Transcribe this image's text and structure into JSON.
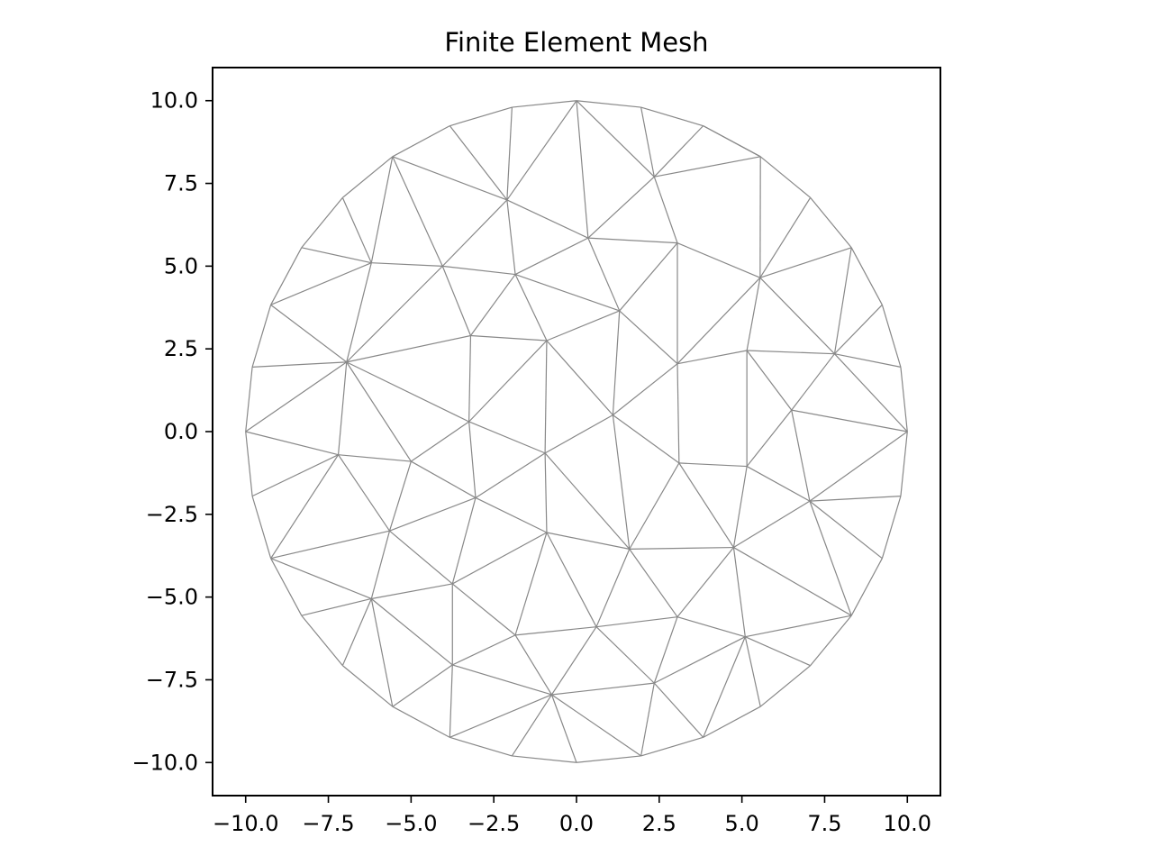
{
  "chart_data": {
    "type": "mesh",
    "title": "Finite Element Mesh",
    "xlabel": "",
    "ylabel": "",
    "xlim": [
      -11.0,
      11.0
    ],
    "ylim": [
      -11.0,
      11.0
    ],
    "grid": false,
    "edge_color": "#888888",
    "x_ticks": [
      -10.0,
      -7.5,
      -5.0,
      -2.5,
      0.0,
      2.5,
      5.0,
      7.5,
      10.0
    ],
    "x_tick_labels": [
      "−10.0",
      "−7.5",
      "−5.0",
      "−2.5",
      "0.0",
      "2.5",
      "5.0",
      "7.5",
      "10.0"
    ],
    "y_ticks": [
      10.0,
      7.5,
      5.0,
      2.5,
      0.0,
      -2.5,
      -5.0,
      -7.5,
      -10.0
    ],
    "y_tick_labels": [
      "10.0",
      "7.5",
      "5.0",
      "2.5",
      "0.0",
      "−2.5",
      "−5.0",
      "−7.5",
      "−10.0"
    ],
    "nodes": [
      [
        10.0,
        0.0
      ],
      [
        9.8,
        1.95
      ],
      [
        9.24,
        3.83
      ],
      [
        8.31,
        5.56
      ],
      [
        7.07,
        7.07
      ],
      [
        5.56,
        8.31
      ],
      [
        3.83,
        9.24
      ],
      [
        1.95,
        9.8
      ],
      [
        0.0,
        10.0
      ],
      [
        -1.95,
        9.8
      ],
      [
        -3.83,
        9.24
      ],
      [
        -5.56,
        8.31
      ],
      [
        -7.07,
        7.07
      ],
      [
        -8.31,
        5.56
      ],
      [
        -9.24,
        3.83
      ],
      [
        -9.8,
        1.95
      ],
      [
        -10.0,
        0.0
      ],
      [
        -9.8,
        -1.95
      ],
      [
        -9.24,
        -3.83
      ],
      [
        -8.31,
        -5.56
      ],
      [
        -7.07,
        -7.07
      ],
      [
        -5.56,
        -8.31
      ],
      [
        -3.83,
        -9.24
      ],
      [
        -1.95,
        -9.8
      ],
      [
        0.0,
        -10.0
      ],
      [
        1.95,
        -9.8
      ],
      [
        3.83,
        -9.24
      ],
      [
        5.56,
        -8.31
      ],
      [
        7.07,
        -7.07
      ],
      [
        8.31,
        -5.56
      ],
      [
        9.24,
        -3.83
      ],
      [
        9.8,
        -1.95
      ],
      [
        -2.1,
        7.0
      ],
      [
        0.35,
        5.85
      ],
      [
        2.35,
        7.7
      ],
      [
        3.05,
        5.7
      ],
      [
        -4.05,
        5.0
      ],
      [
        -1.85,
        4.75
      ],
      [
        1.3,
        3.65
      ],
      [
        5.55,
        4.65
      ],
      [
        -6.2,
        5.1
      ],
      [
        7.8,
        2.35
      ],
      [
        -3.2,
        2.9
      ],
      [
        -0.9,
        2.75
      ],
      [
        3.05,
        2.05
      ],
      [
        5.15,
        2.45
      ],
      [
        -6.95,
        2.1
      ],
      [
        1.1,
        0.5
      ],
      [
        6.5,
        0.65
      ],
      [
        -3.25,
        0.3
      ],
      [
        -7.2,
        -0.7
      ],
      [
        -5.0,
        -0.9
      ],
      [
        -0.95,
        -0.65
      ],
      [
        3.1,
        -0.95
      ],
      [
        5.15,
        -1.05
      ],
      [
        7.05,
        -2.1
      ],
      [
        -3.05,
        -2.0
      ],
      [
        -5.65,
        -3.0
      ],
      [
        -0.9,
        -3.05
      ],
      [
        1.6,
        -3.55
      ],
      [
        4.75,
        -3.5
      ],
      [
        -3.75,
        -4.6
      ],
      [
        -6.2,
        -5.05
      ],
      [
        0.6,
        -5.9
      ],
      [
        3.05,
        -5.6
      ],
      [
        5.1,
        -6.2
      ],
      [
        -1.85,
        -6.15
      ],
      [
        -3.75,
        -7.05
      ],
      [
        -0.75,
        -7.95
      ],
      [
        2.35,
        -7.6
      ]
    ],
    "edges": [
      [
        0,
        1
      ],
      [
        1,
        2
      ],
      [
        2,
        3
      ],
      [
        3,
        4
      ],
      [
        4,
        5
      ],
      [
        5,
        6
      ],
      [
        6,
        7
      ],
      [
        7,
        8
      ],
      [
        8,
        9
      ],
      [
        9,
        10
      ],
      [
        10,
        11
      ],
      [
        11,
        12
      ],
      [
        12,
        13
      ],
      [
        13,
        14
      ],
      [
        14,
        15
      ],
      [
        15,
        16
      ],
      [
        16,
        17
      ],
      [
        17,
        18
      ],
      [
        18,
        19
      ],
      [
        19,
        20
      ],
      [
        20,
        21
      ],
      [
        21,
        22
      ],
      [
        22,
        23
      ],
      [
        23,
        24
      ],
      [
        24,
        25
      ],
      [
        25,
        26
      ],
      [
        26,
        27
      ],
      [
        27,
        28
      ],
      [
        28,
        29
      ],
      [
        29,
        30
      ],
      [
        30,
        31
      ],
      [
        31,
        0
      ],
      [
        8,
        32
      ],
      [
        8,
        33
      ],
      [
        8,
        34
      ],
      [
        9,
        32
      ],
      [
        10,
        32
      ],
      [
        7,
        34
      ],
      [
        6,
        34
      ],
      [
        6,
        5
      ],
      [
        34,
        5
      ],
      [
        34,
        35
      ],
      [
        5,
        39
      ],
      [
        4,
        39
      ],
      [
        3,
        39
      ],
      [
        3,
        41
      ],
      [
        2,
        41
      ],
      [
        1,
        41
      ],
      [
        0,
        41
      ],
      [
        11,
        32
      ],
      [
        11,
        36
      ],
      [
        11,
        40
      ],
      [
        12,
        40
      ],
      [
        13,
        40
      ],
      [
        14,
        40
      ],
      [
        14,
        46
      ],
      [
        15,
        46
      ],
      [
        16,
        46
      ],
      [
        16,
        50
      ],
      [
        17,
        50
      ],
      [
        18,
        50
      ],
      [
        18,
        57
      ],
      [
        19,
        62
      ],
      [
        18,
        62
      ],
      [
        20,
        62
      ],
      [
        21,
        62
      ],
      [
        21,
        67
      ],
      [
        22,
        67
      ],
      [
        22,
        68
      ],
      [
        23,
        68
      ],
      [
        24,
        68
      ],
      [
        25,
        68
      ],
      [
        25,
        69
      ],
      [
        26,
        69
      ],
      [
        26,
        65
      ],
      [
        27,
        65
      ],
      [
        28,
        65
      ],
      [
        29,
        65
      ],
      [
        29,
        60
      ],
      [
        29,
        55
      ],
      [
        30,
        55
      ],
      [
        31,
        55
      ],
      [
        0,
        55
      ],
      [
        0,
        48
      ],
      [
        32,
        33
      ],
      [
        32,
        36
      ],
      [
        32,
        37
      ],
      [
        33,
        37
      ],
      [
        33,
        35
      ],
      [
        33,
        38
      ],
      [
        34,
        33
      ],
      [
        35,
        38
      ],
      [
        35,
        44
      ],
      [
        35,
        39
      ],
      [
        39,
        44
      ],
      [
        39,
        45
      ],
      [
        39,
        41
      ],
      [
        41,
        45
      ],
      [
        41,
        48
      ],
      [
        36,
        40
      ],
      [
        36,
        37
      ],
      [
        36,
        42
      ],
      [
        36,
        46
      ],
      [
        40,
        46
      ],
      [
        37,
        42
      ],
      [
        37,
        43
      ],
      [
        37,
        38
      ],
      [
        38,
        43
      ],
      [
        38,
        47
      ],
      [
        38,
        44
      ],
      [
        42,
        43
      ],
      [
        42,
        46
      ],
      [
        42,
        49
      ],
      [
        43,
        49
      ],
      [
        43,
        52
      ],
      [
        43,
        47
      ],
      [
        44,
        47
      ],
      [
        44,
        45
      ],
      [
        44,
        53
      ],
      [
        45,
        48
      ],
      [
        45,
        54
      ],
      [
        48,
        54
      ],
      [
        48,
        55
      ],
      [
        46,
        49
      ],
      [
        46,
        50
      ],
      [
        46,
        51
      ],
      [
        49,
        51
      ],
      [
        49,
        52
      ],
      [
        49,
        56
      ],
      [
        47,
        52
      ],
      [
        47,
        53
      ],
      [
        47,
        59
      ],
      [
        53,
        54
      ],
      [
        53,
        59
      ],
      [
        53,
        60
      ],
      [
        54,
        55
      ],
      [
        54,
        60
      ],
      [
        55,
        60
      ],
      [
        50,
        51
      ],
      [
        50,
        57
      ],
      [
        51,
        56
      ],
      [
        51,
        57
      ],
      [
        52,
        56
      ],
      [
        52,
        58
      ],
      [
        52,
        59
      ],
      [
        56,
        57
      ],
      [
        56,
        58
      ],
      [
        56,
        61
      ],
      [
        57,
        61
      ],
      [
        57,
        62
      ],
      [
        58,
        59
      ],
      [
        58,
        61
      ],
      [
        58,
        66
      ],
      [
        58,
        63
      ],
      [
        59,
        60
      ],
      [
        59,
        63
      ],
      [
        59,
        64
      ],
      [
        60,
        64
      ],
      [
        60,
        65
      ],
      [
        61,
        62
      ],
      [
        61,
        66
      ],
      [
        61,
        67
      ],
      [
        62,
        67
      ],
      [
        63,
        64
      ],
      [
        63,
        66
      ],
      [
        63,
        68
      ],
      [
        63,
        69
      ],
      [
        64,
        65
      ],
      [
        64,
        69
      ],
      [
        65,
        69
      ],
      [
        66,
        67
      ],
      [
        66,
        68
      ],
      [
        67,
        68
      ],
      [
        68,
        69
      ]
    ]
  }
}
